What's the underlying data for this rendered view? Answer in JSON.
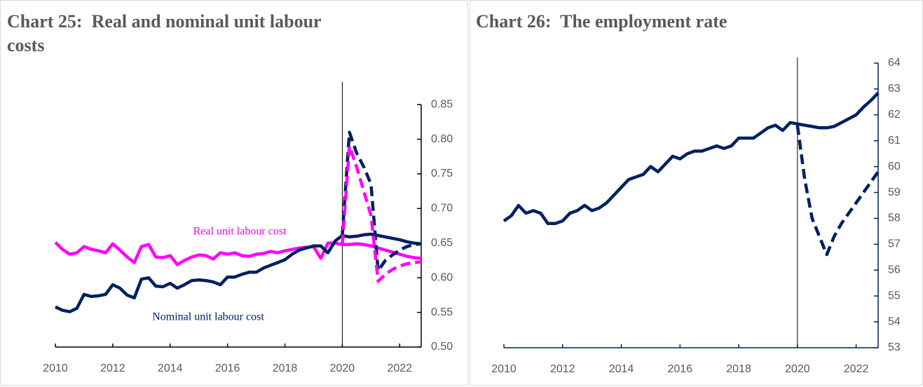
{
  "chart_data": [
    {
      "type": "line",
      "title": "Chart 25:  Real and nominal unit labour costs",
      "x": [
        2010,
        2010.25,
        2010.5,
        2010.75,
        2011,
        2011.25,
        2011.5,
        2011.75,
        2012,
        2012.25,
        2012.5,
        2012.75,
        2013,
        2013.25,
        2013.5,
        2013.75,
        2014,
        2014.25,
        2014.5,
        2014.75,
        2015,
        2015.25,
        2015.5,
        2015.75,
        2016,
        2016.25,
        2016.5,
        2016.75,
        2017,
        2017.25,
        2017.5,
        2017.75,
        2018,
        2018.25,
        2018.5,
        2018.75,
        2019,
        2019.25,
        2019.5,
        2019.75,
        2020,
        2020.25,
        2020.5,
        2020.75,
        2021,
        2021.25,
        2021.5,
        2021.75,
        2022,
        2022.25,
        2022.5,
        2022.75
      ],
      "series": [
        {
          "name": "Real unit labour cost",
          "color": "#ff00ff",
          "dash": false,
          "values": [
            0.651,
            0.641,
            0.634,
            0.636,
            0.645,
            0.641,
            0.639,
            0.636,
            0.649,
            0.64,
            0.63,
            0.622,
            0.645,
            0.648,
            0.63,
            0.629,
            0.632,
            0.619,
            0.625,
            0.63,
            0.633,
            0.632,
            0.627,
            0.636,
            0.634,
            0.636,
            0.632,
            0.631,
            0.634,
            0.635,
            0.638,
            0.636,
            0.639,
            0.641,
            0.643,
            0.644,
            0.645,
            0.628,
            0.65,
            0.65,
            0.648,
            0.648,
            0.649,
            0.648,
            0.646,
            0.643,
            0.64,
            0.637,
            0.634,
            0.631,
            0.629,
            0.628
          ]
        },
        {
          "name": "Nominal unit labour cost",
          "color": "#002060",
          "dash": false,
          "values": [
            0.558,
            0.553,
            0.551,
            0.556,
            0.576,
            0.573,
            0.574,
            0.576,
            0.59,
            0.585,
            0.575,
            0.571,
            0.598,
            0.6,
            0.588,
            0.587,
            0.592,
            0.585,
            0.59,
            0.596,
            0.597,
            0.596,
            0.594,
            0.59,
            0.601,
            0.601,
            0.605,
            0.608,
            0.608,
            0.614,
            0.618,
            0.622,
            0.626,
            0.634,
            0.64,
            0.643,
            0.646,
            0.646,
            0.636,
            0.653,
            0.661,
            0.659,
            0.66,
            0.662,
            0.663,
            0.661,
            0.659,
            0.657,
            0.655,
            0.652,
            0.65,
            0.649
          ]
        },
        {
          "color": "#002060",
          "dash": true,
          "values": [
            null,
            null,
            null,
            null,
            null,
            null,
            null,
            null,
            null,
            null,
            null,
            null,
            null,
            null,
            null,
            null,
            null,
            null,
            null,
            null,
            null,
            null,
            null,
            null,
            null,
            null,
            null,
            null,
            null,
            null,
            null,
            null,
            null,
            null,
            null,
            null,
            null,
            null,
            null,
            null,
            0.661,
            0.81,
            0.78,
            0.76,
            0.735,
            0.61,
            0.625,
            0.633,
            0.64,
            0.645,
            0.648,
            0.649
          ]
        },
        {
          "color": "#ff00ff",
          "dash": true,
          "values": [
            null,
            null,
            null,
            null,
            null,
            null,
            null,
            null,
            null,
            null,
            null,
            null,
            null,
            null,
            null,
            null,
            null,
            null,
            null,
            null,
            null,
            null,
            null,
            null,
            null,
            null,
            null,
            null,
            null,
            null,
            null,
            null,
            null,
            null,
            null,
            null,
            null,
            null,
            null,
            null,
            0.648,
            0.79,
            0.76,
            0.725,
            0.69,
            0.595,
            0.605,
            0.612,
            0.617,
            0.62,
            0.622,
            0.623
          ]
        }
      ],
      "xlim": [
        2010,
        2022.75
      ],
      "xticks": [
        2010,
        2012,
        2014,
        2016,
        2018,
        2020,
        2022
      ],
      "ylim": [
        0.5,
        0.875
      ],
      "yticks": [
        {
          "value": 0.5,
          "label": "0.50"
        },
        0.55,
        {
          "value": 0.6,
          "label": "0.60"
        },
        0.65,
        {
          "value": 0.7,
          "label": "0.70"
        },
        0.75,
        {
          "value": 0.8,
          "label": "0.80"
        },
        0.85
      ],
      "vline": 2020,
      "axis_color": "#000000",
      "y_axis_side": "right"
    },
    {
      "type": "line",
      "title": "Chart 26:  The employment rate",
      "x": [
        2010,
        2010.25,
        2010.5,
        2010.75,
        2011,
        2011.25,
        2011.5,
        2011.75,
        2012,
        2012.25,
        2012.5,
        2012.75,
        2013,
        2013.25,
        2013.5,
        2013.75,
        2014,
        2014.25,
        2014.5,
        2014.75,
        2015,
        2015.25,
        2015.5,
        2015.75,
        2016,
        2016.25,
        2016.5,
        2016.75,
        2017,
        2017.25,
        2017.5,
        2017.75,
        2018,
        2018.25,
        2018.5,
        2018.75,
        2019,
        2019.25,
        2019.5,
        2019.75,
        2020,
        2020.25,
        2020.5,
        2020.75,
        2021,
        2021.25,
        2021.5,
        2021.75,
        2022,
        2022.25,
        2022.5,
        2022.75
      ],
      "series": [
        {
          "color": "#002060",
          "dash": false,
          "values": [
            57.9,
            58.1,
            58.5,
            58.2,
            58.3,
            58.2,
            57.8,
            57.8,
            57.9,
            58.2,
            58.3,
            58.5,
            58.3,
            58.4,
            58.6,
            58.9,
            59.2,
            59.5,
            59.6,
            59.7,
            60.0,
            59.8,
            60.1,
            60.4,
            60.3,
            60.5,
            60.6,
            60.6,
            60.7,
            60.8,
            60.7,
            60.8,
            61.1,
            61.1,
            61.1,
            61.3,
            61.5,
            61.6,
            61.4,
            61.7,
            61.65,
            61.6,
            61.55,
            61.5,
            61.5,
            61.55,
            61.7,
            61.85,
            62.0,
            62.3,
            62.55,
            62.85
          ]
        },
        {
          "color": "#002060",
          "dash": true,
          "values": [
            null,
            null,
            null,
            null,
            null,
            null,
            null,
            null,
            null,
            null,
            null,
            null,
            null,
            null,
            null,
            null,
            null,
            null,
            null,
            null,
            null,
            null,
            null,
            null,
            null,
            null,
            null,
            null,
            null,
            null,
            null,
            null,
            null,
            null,
            null,
            null,
            null,
            null,
            null,
            null,
            61.6,
            59.5,
            58.0,
            57.3,
            56.6,
            57.3,
            57.8,
            58.2,
            58.6,
            59.0,
            59.4,
            59.8
          ]
        }
      ],
      "xlim": [
        2010,
        2022.75
      ],
      "xticks": [
        2010,
        2012,
        2014,
        2016,
        2018,
        2020,
        2022
      ],
      "ylim": [
        53,
        64
      ],
      "yticks": [
        53,
        54,
        55,
        56,
        57,
        58,
        59,
        60,
        61,
        62,
        63,
        64
      ],
      "vline": 2020,
      "axis_color": "#002060",
      "y_axis_side": "right"
    }
  ]
}
